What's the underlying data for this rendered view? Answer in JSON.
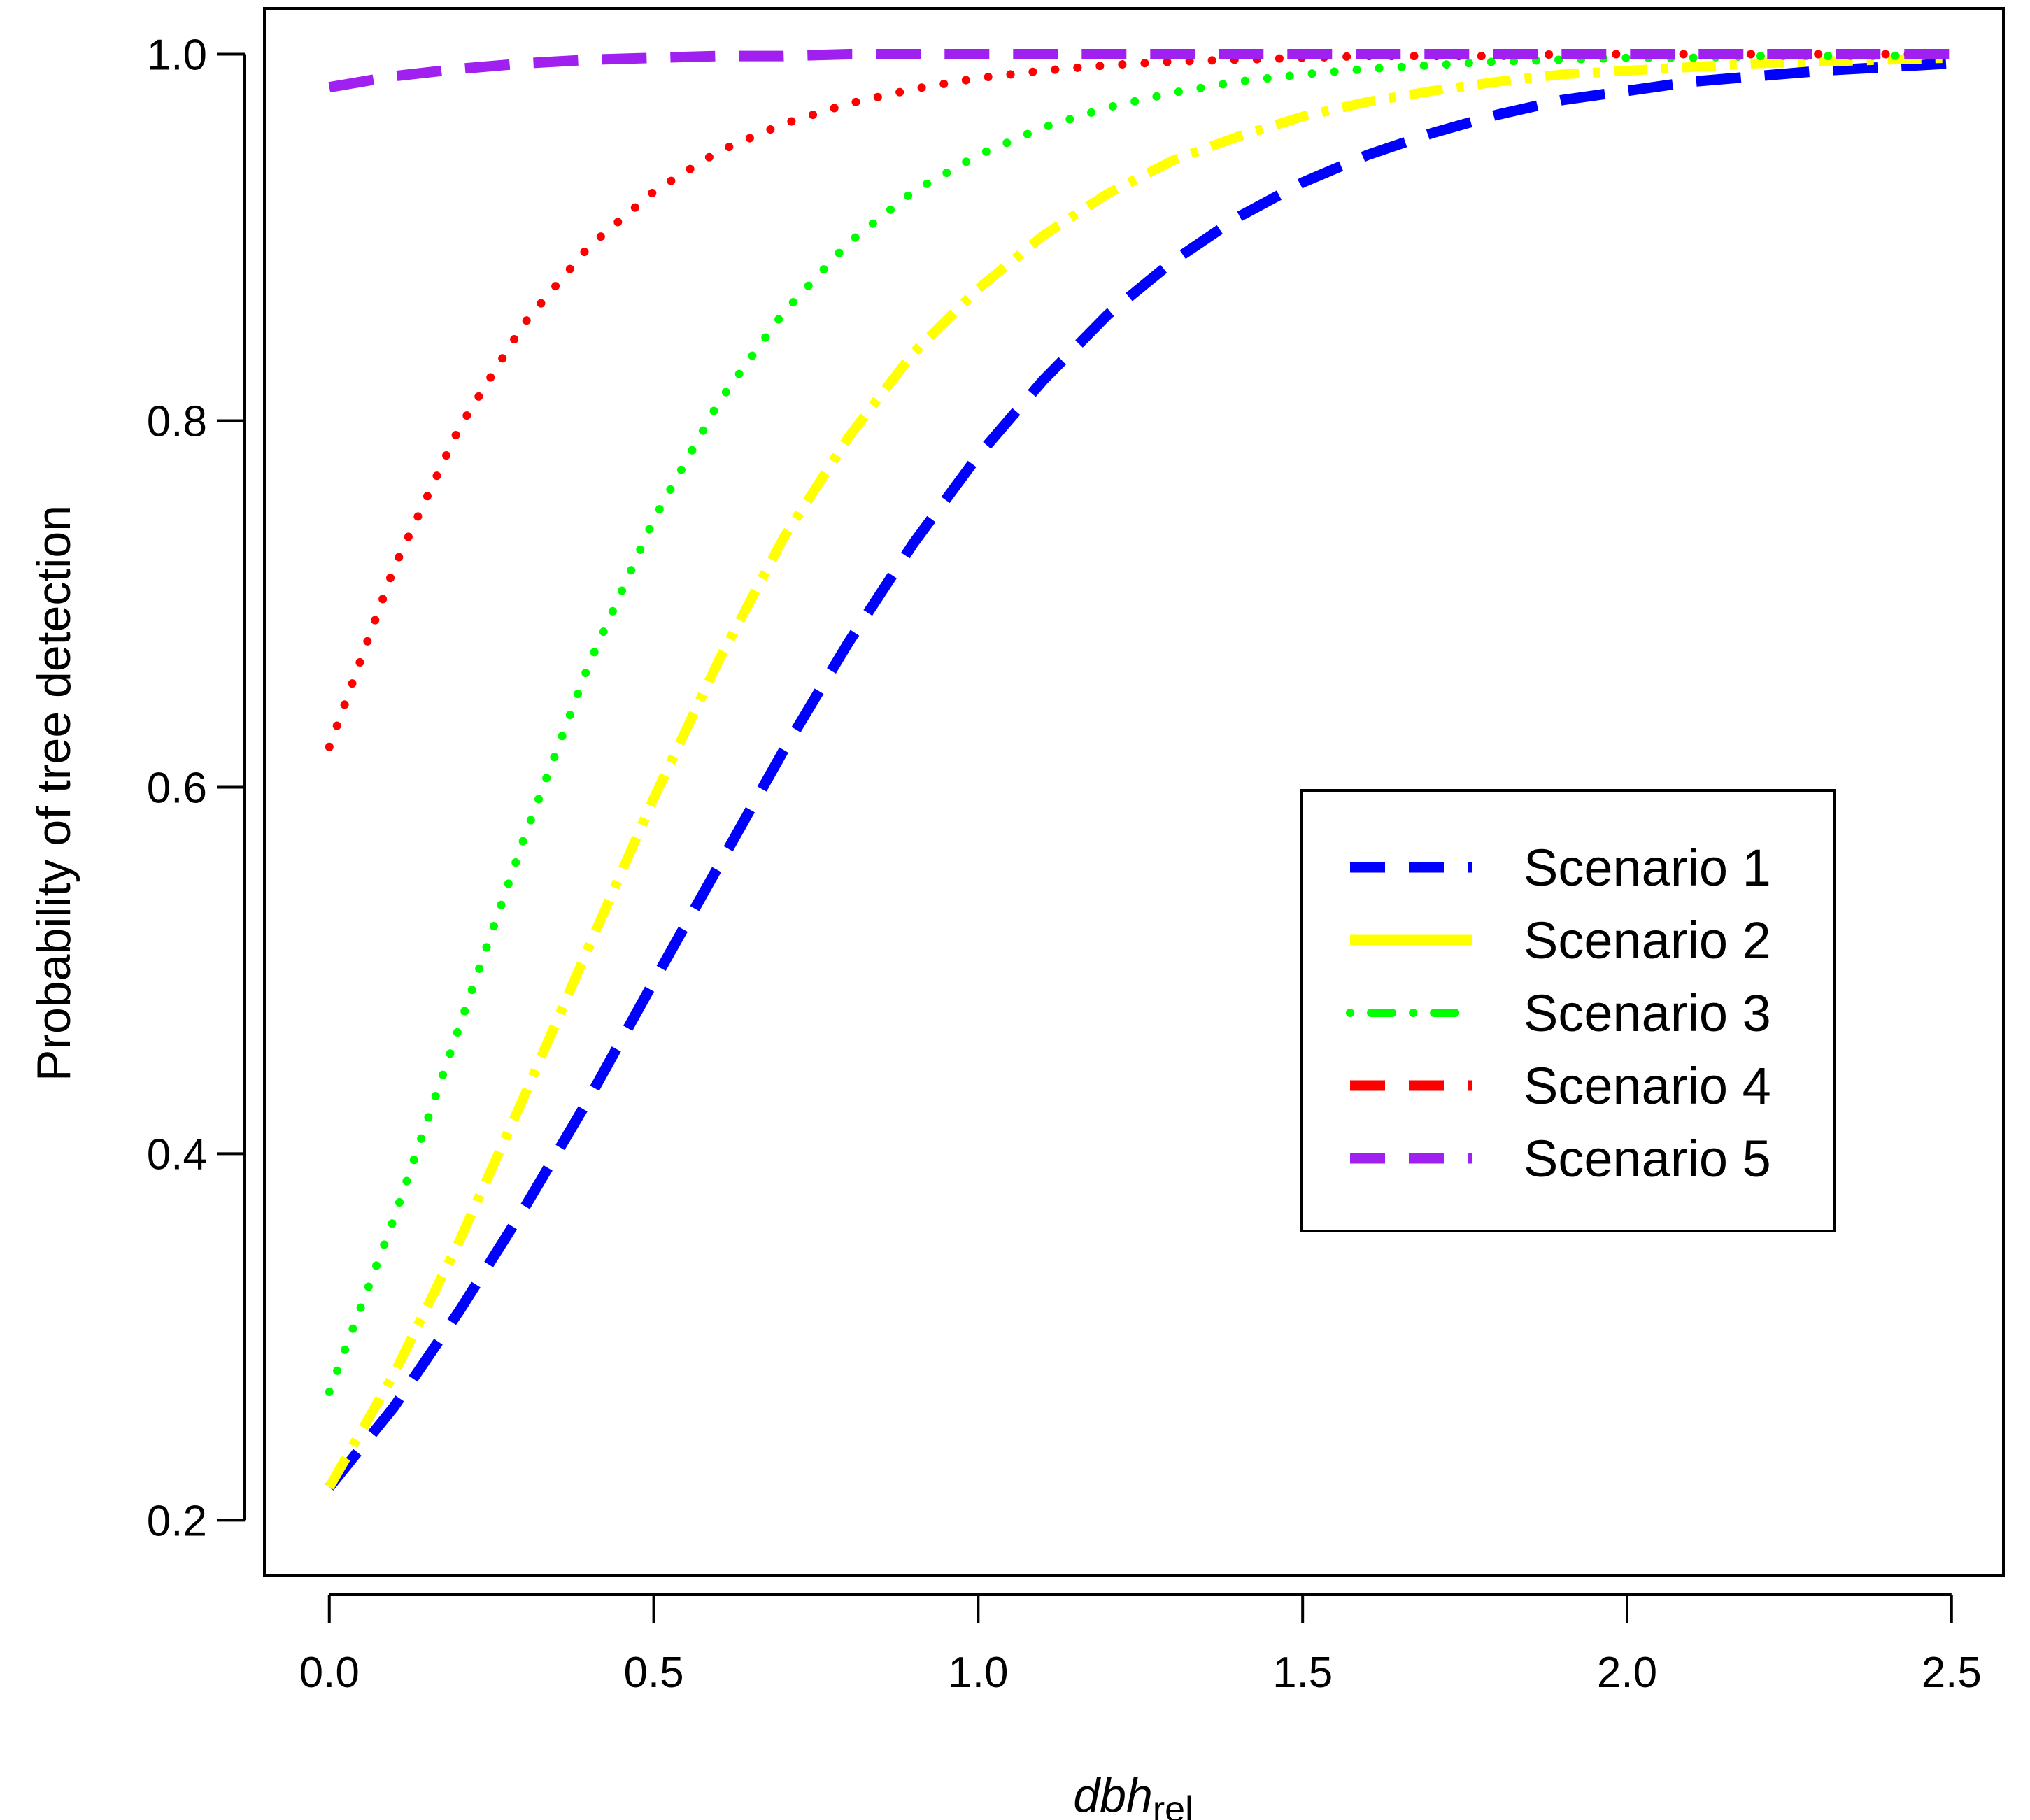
{
  "chart_data": {
    "type": "line",
    "title": "",
    "xlabel": "dbh",
    "xlabel_subscript": "rel",
    "ylabel": "Probability of tree detection",
    "xlim": [
      -0.1,
      2.58
    ],
    "ylim": [
      0.17,
      1.025
    ],
    "xticks": [
      0.0,
      0.5,
      1.0,
      1.5,
      2.0,
      2.5
    ],
    "xtick_labels": [
      "0.0",
      "0.5",
      "1.0",
      "1.5",
      "2.0",
      "2.5"
    ],
    "yticks": [
      0.2,
      0.4,
      0.6,
      0.8,
      1.0
    ],
    "ytick_labels": [
      "0.2",
      "0.4",
      "0.6",
      "0.8",
      "1.0"
    ],
    "grid": false,
    "legend_position": "right-center",
    "series": [
      {
        "name": "Scenario 1",
        "color": "#0000FF",
        "style": "longdash",
        "legend_style": "dashed",
        "x": [
          0.0,
          0.1,
          0.2,
          0.3,
          0.4,
          0.5,
          0.6,
          0.7,
          0.8,
          0.9,
          1.0,
          1.1,
          1.2,
          1.3,
          1.4,
          1.5,
          1.6,
          1.7,
          1.8,
          1.9,
          2.0,
          2.1,
          2.2,
          2.3,
          2.4,
          2.5
        ],
        "values": [
          0.218,
          0.262,
          0.314,
          0.37,
          0.43,
          0.494,
          0.557,
          0.62,
          0.679,
          0.733,
          0.781,
          0.822,
          0.858,
          0.887,
          0.911,
          0.93,
          0.945,
          0.957,
          0.967,
          0.975,
          0.98,
          0.985,
          0.988,
          0.991,
          0.993,
          0.995
        ]
      },
      {
        "name": "Scenario 2",
        "color": "#FFFF00",
        "style": "twodash",
        "legend_style": "solid",
        "x": [
          0.0,
          0.1,
          0.2,
          0.3,
          0.4,
          0.5,
          0.6,
          0.7,
          0.8,
          0.9,
          1.0,
          1.1,
          1.2,
          1.3,
          1.4,
          1.5,
          1.6,
          1.7,
          1.8,
          1.9,
          2.0,
          2.1,
          2.2,
          2.3,
          2.4,
          2.5
        ],
        "values": [
          0.218,
          0.28,
          0.352,
          0.431,
          0.513,
          0.594,
          0.669,
          0.736,
          0.791,
          0.837,
          0.872,
          0.901,
          0.924,
          0.942,
          0.955,
          0.966,
          0.974,
          0.98,
          0.985,
          0.989,
          0.991,
          0.993,
          0.995,
          0.996,
          0.997,
          0.998
        ]
      },
      {
        "name": "Scenario 3",
        "color": "#00FF00",
        "style": "dotted",
        "legend_style": "dotdash",
        "x": [
          0.0,
          0.1,
          0.2,
          0.3,
          0.4,
          0.5,
          0.6,
          0.7,
          0.8,
          0.9,
          1.0,
          1.1,
          1.2,
          1.3,
          1.4,
          1.5,
          1.6,
          1.7,
          1.8,
          1.9,
          2.0,
          2.1,
          2.2,
          2.3,
          2.4,
          2.5
        ],
        "values": [
          0.27,
          0.365,
          0.469,
          0.572,
          0.667,
          0.746,
          0.81,
          0.859,
          0.897,
          0.925,
          0.945,
          0.96,
          0.971,
          0.979,
          0.985,
          0.989,
          0.992,
          0.994,
          0.996,
          0.997,
          0.998,
          0.998,
          0.999,
          0.999,
          0.999,
          1.0
        ]
      },
      {
        "name": "Scenario 4",
        "color": "#FF0000",
        "style": "dotted",
        "legend_style": "dashed",
        "x": [
          0.0,
          0.1,
          0.2,
          0.3,
          0.4,
          0.5,
          0.6,
          0.7,
          0.8,
          0.9,
          1.0,
          1.1,
          1.2,
          1.3,
          1.4,
          1.5,
          1.6,
          1.7,
          1.8,
          1.9,
          2.0,
          2.1,
          2.2,
          2.3,
          2.4,
          2.5
        ],
        "values": [
          0.622,
          0.72,
          0.796,
          0.853,
          0.895,
          0.925,
          0.947,
          0.962,
          0.973,
          0.981,
          0.987,
          0.991,
          0.994,
          0.996,
          0.997,
          0.998,
          0.999,
          0.999,
          0.999,
          1.0,
          1.0,
          1.0,
          1.0,
          1.0,
          1.0,
          1.0
        ]
      },
      {
        "name": "Scenario 5",
        "color": "#A020F0",
        "style": "longdash",
        "legend_style": "dashed",
        "x": [
          0.0,
          0.1,
          0.2,
          0.3,
          0.4,
          0.5,
          0.6,
          0.7,
          0.8,
          0.9,
          1.0,
          1.1,
          1.2,
          1.3,
          1.4,
          1.5,
          1.6,
          1.7,
          1.8,
          1.9,
          2.0,
          2.1,
          2.2,
          2.3,
          2.4,
          2.5
        ],
        "values": [
          0.982,
          0.988,
          0.992,
          0.995,
          0.997,
          0.998,
          0.999,
          0.999,
          1.0,
          1.0,
          1.0,
          1.0,
          1.0,
          1.0,
          1.0,
          1.0,
          1.0,
          1.0,
          1.0,
          1.0,
          1.0,
          1.0,
          1.0,
          1.0,
          1.0,
          1.0
        ]
      }
    ]
  }
}
